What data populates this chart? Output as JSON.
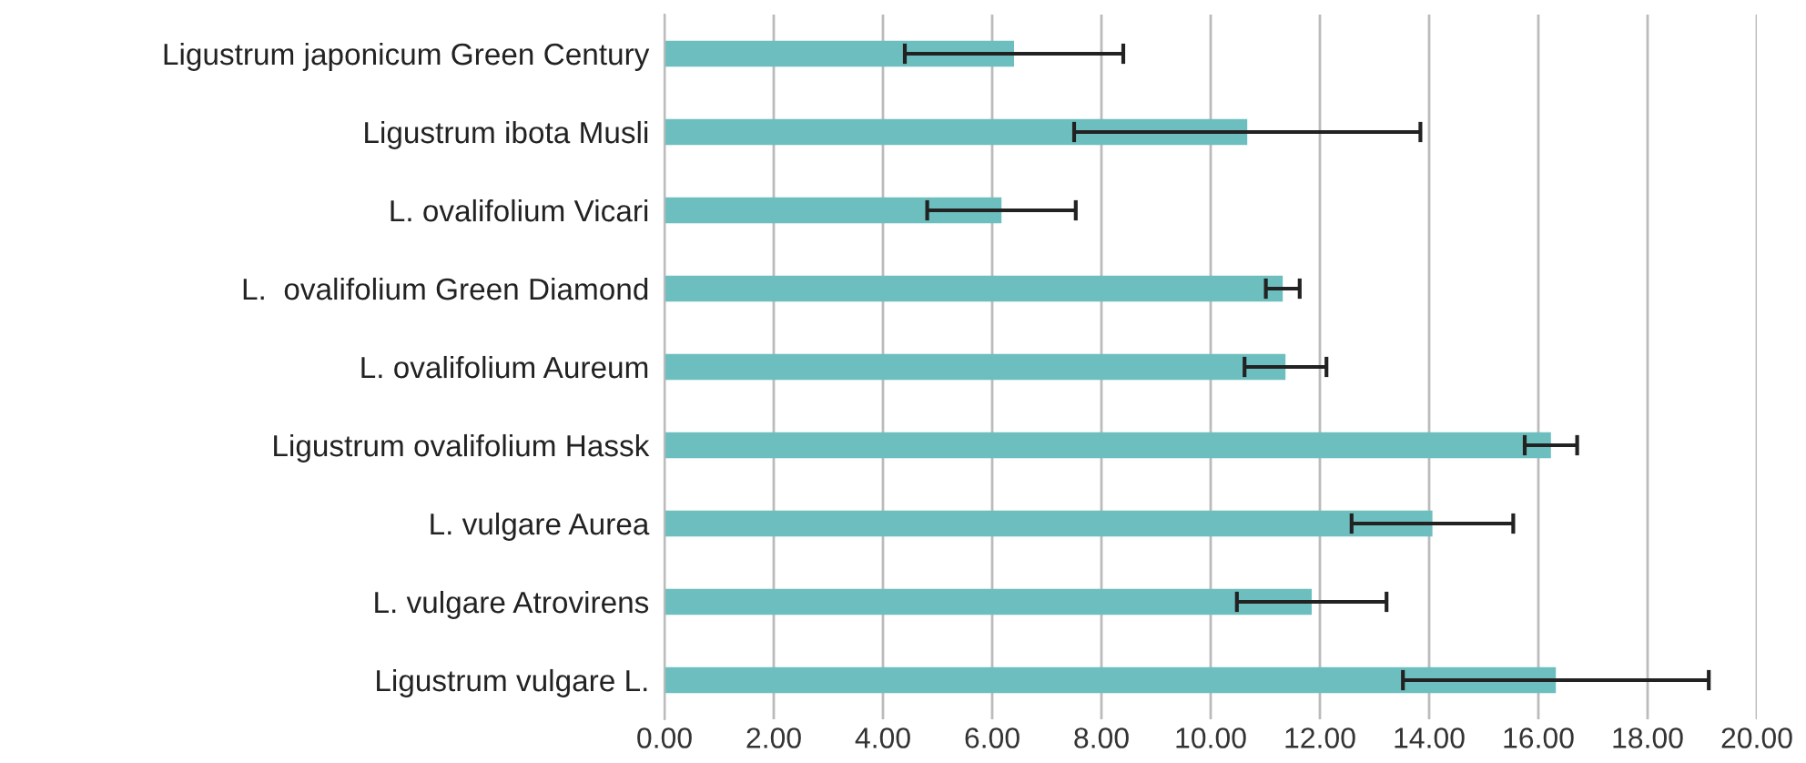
{
  "chart_data": {
    "type": "bar",
    "orientation": "horizontal",
    "categories": [
      "Ligustrum japonicum Green Century",
      "Ligustrum ibota Musli",
      "L. ovalifolium Vicari",
      "L.  ovalifolium Green Diamond",
      "L. ovalifolium Aureum",
      "Ligustrum ovalifolium Hassk",
      "L. vulgare Aurea",
      "L. vulgare Atrovirens",
      "Ligustrum vulgare L."
    ],
    "values": [
      6.4,
      10.67,
      6.17,
      11.32,
      11.37,
      16.23,
      14.06,
      11.85,
      16.32
    ],
    "errors": [
      2.0,
      3.17,
      1.36,
      0.31,
      0.75,
      0.48,
      1.48,
      1.37,
      2.8
    ],
    "color": "#6dbfbf",
    "xlim": [
      0,
      20
    ],
    "xticks": [
      {
        "value": 0,
        "label": "0.00"
      },
      {
        "value": 2,
        "label": "2.00"
      },
      {
        "value": 4,
        "label": "4.00"
      },
      {
        "value": 6,
        "label": "6.00"
      },
      {
        "value": 8,
        "label": "8.00"
      },
      {
        "value": 10,
        "label": "10.00"
      },
      {
        "value": 12,
        "label": "12.00"
      },
      {
        "value": 14,
        "label": "14.00"
      },
      {
        "value": 16,
        "label": "16.00"
      },
      {
        "value": 18,
        "label": "18.00"
      },
      {
        "value": 20,
        "label": "20.00"
      }
    ],
    "grid": "x"
  }
}
